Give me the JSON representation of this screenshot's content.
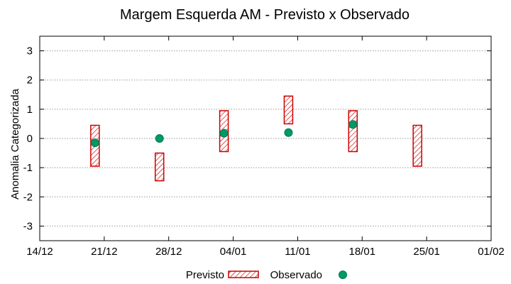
{
  "chart_data": {
    "type": "scatter",
    "title": "Margem Esquerda AM - Previsto x Observado",
    "xlabel": "",
    "ylabel": "Anomalia Categorizada",
    "x_ticks": [
      "14/12",
      "21/12",
      "28/12",
      "04/01",
      "11/01",
      "18/01",
      "25/01",
      "01/02"
    ],
    "y_ticks": [
      "-3",
      "-2",
      "-1",
      "0",
      "1",
      "2",
      "3"
    ],
    "ylim": [
      -3.5,
      3.5
    ],
    "grid": true,
    "legend_position": "bottom",
    "series": [
      {
        "name": "Previsto",
        "kind": "range-box",
        "color": "#cc0000",
        "points": [
          {
            "x": "20/12",
            "low": -0.95,
            "high": 0.45
          },
          {
            "x": "27/12",
            "low": -1.45,
            "high": -0.5
          },
          {
            "x": "03/01",
            "low": -0.45,
            "high": 0.95
          },
          {
            "x": "10/01",
            "low": 0.5,
            "high": 1.45
          },
          {
            "x": "17/01",
            "low": -0.45,
            "high": 0.95
          },
          {
            "x": "24/01",
            "low": -0.95,
            "high": 0.45
          }
        ]
      },
      {
        "name": "Observado",
        "kind": "point",
        "color": "#009966",
        "points": [
          {
            "x": "20/12",
            "y": -0.15
          },
          {
            "x": "27/12",
            "y": 0.0
          },
          {
            "x": "03/01",
            "y": 0.18
          },
          {
            "x": "10/01",
            "y": 0.2
          },
          {
            "x": "17/01",
            "y": 0.48
          }
        ]
      }
    ]
  }
}
